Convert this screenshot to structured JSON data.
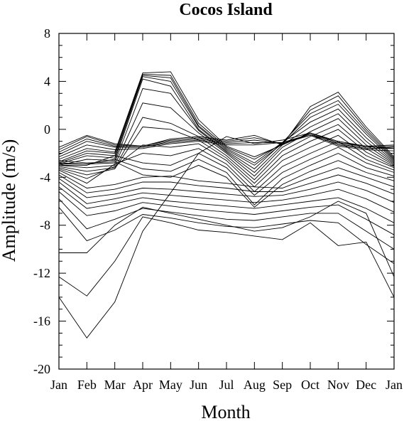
{
  "chart_data": {
    "type": "line",
    "title": "Cocos Island",
    "xlabel": "Month",
    "ylabel": "Amplitude (m/s)",
    "categories": [
      "Jan",
      "Feb",
      "Mar",
      "Apr",
      "May",
      "Jun",
      "Jul",
      "Aug",
      "Sep",
      "Oct",
      "Nov",
      "Dec",
      "Jan"
    ],
    "ylim": [
      -20,
      8
    ],
    "yticks": [
      "8",
      "4",
      "0",
      "-4",
      "-8",
      "-12",
      "-16",
      "-20"
    ],
    "grid": false,
    "colors": {
      "line": "#000000",
      "frame": "#000000",
      "background": "#ffffff"
    },
    "series": [
      {
        "values": [
          -1.5,
          -0.5,
          -1.2,
          -1.4,
          -0.8,
          -0.6,
          -0.9,
          -0.5,
          -1.3,
          -0.3,
          -1.0,
          -1.4,
          -1.3
        ]
      },
      {
        "values": [
          -1.7,
          -0.6,
          -1.3,
          -1.4,
          -0.9,
          -0.7,
          -1.0,
          -0.7,
          -1.2,
          -0.4,
          -1.1,
          -1.5,
          -1.4
        ]
      },
      {
        "values": [
          -1.9,
          -0.8,
          -1.4,
          -1.5,
          -1.0,
          -0.8,
          -1.1,
          -0.9,
          -1.2,
          -0.5,
          -1.2,
          -1.6,
          -1.5
        ]
      },
      {
        "values": [
          -2.1,
          -1.0,
          -1.5,
          -1.5,
          -1.1,
          -0.9,
          -1.2,
          -1.1,
          -1.1,
          -0.4,
          -1.3,
          -1.6,
          -1.6
        ]
      },
      {
        "values": [
          -2.3,
          -1.3,
          -1.7,
          -1.6,
          -1.2,
          -1.0,
          -1.3,
          -1.3,
          -1.1,
          -0.5,
          -1.4,
          -1.7,
          -1.8
        ]
      },
      {
        "values": [
          -2.5,
          -1.6,
          -1.9,
          4.7,
          4.8,
          0.8,
          -1.4,
          -2.3,
          -1.3,
          1.9,
          3.1,
          0.2,
          -2.3
        ]
      },
      {
        "values": [
          -2.7,
          -1.8,
          -2.0,
          4.6,
          4.5,
          0.5,
          -1.5,
          -2.5,
          -1.2,
          1.6,
          2.8,
          0.0,
          -2.4
        ]
      },
      {
        "values": [
          -2.8,
          -2.0,
          -2.2,
          4.5,
          4.3,
          0.3,
          -1.6,
          -2.8,
          -1.1,
          1.3,
          2.4,
          -0.2,
          -2.5
        ]
      },
      {
        "values": [
          -2.9,
          -2.2,
          -2.4,
          4.4,
          4.0,
          0.2,
          -1.7,
          -3.0,
          -1.2,
          1.0,
          2.1,
          -0.4,
          -2.6
        ]
      },
      {
        "values": [
          -3.0,
          -2.5,
          -2.6,
          4.2,
          3.6,
          0.0,
          -1.8,
          -3.3,
          -1.1,
          0.6,
          1.7,
          -0.7,
          -2.7
        ]
      },
      {
        "values": [
          -2.9,
          -2.9,
          -2.8,
          3.4,
          3.0,
          -0.1,
          -1.9,
          -3.6,
          -1.3,
          0.2,
          1.3,
          -1.0,
          -2.8
        ]
      },
      {
        "values": [
          -3.0,
          -3.2,
          -3.0,
          2.2,
          1.8,
          -0.3,
          -2.0,
          -3.9,
          -1.5,
          -0.2,
          0.9,
          -1.3,
          -2.9
        ]
      },
      {
        "values": [
          -3.1,
          -3.5,
          -3.2,
          1.0,
          0.5,
          -0.6,
          -2.2,
          -4.2,
          -1.8,
          -0.6,
          0.4,
          -1.6,
          -3.0
        ]
      },
      {
        "values": [
          -3.2,
          -3.8,
          -3.3,
          0.2,
          0.0,
          -0.9,
          -2.4,
          -4.5,
          -2.2,
          -1.0,
          0.0,
          -1.9,
          -3.1
        ]
      },
      {
        "values": [
          -3.3,
          -4.1,
          -3.1,
          -1.3,
          -1.5,
          -1.2,
          -2.6,
          -4.8,
          -2.6,
          -1.5,
          -0.5,
          -2.2,
          -3.2
        ]
      },
      {
        "values": [
          -3.4,
          -4.5,
          -2.9,
          -2.0,
          -2.2,
          -1.6,
          -2.9,
          -5.2,
          -3.1,
          -2.0,
          -1.0,
          -2.5,
          -3.4
        ]
      },
      {
        "values": [
          -3.0,
          -3.0,
          -2.2,
          -2.8,
          -3.0,
          -2.0,
          -3.2,
          -5.5,
          -3.6,
          -2.5,
          -1.5,
          -2.8,
          -3.6
        ]
      },
      {
        "values": [
          -2.8,
          -2.9,
          -2.5,
          -3.3,
          -3.5,
          -2.5,
          -3.6,
          -6.3,
          -4.1,
          -3.0,
          -2.0,
          -3.2,
          -3.9
        ]
      },
      {
        "values": [
          -2.6,
          -2.8,
          -2.7,
          -3.8,
          -4.0,
          -3.0,
          -4.0,
          -6.5,
          -4.6,
          -3.5,
          -2.6,
          -3.6,
          -4.3
        ]
      },
      {
        "values": [
          -3.6,
          -4.9,
          -4.6,
          -4.0,
          -3.9,
          -4.3,
          -4.5,
          -4.8,
          -4.9,
          -4.0,
          -3.2,
          -4.0,
          -4.8
        ]
      },
      {
        "values": [
          -3.8,
          -5.3,
          -5.0,
          -4.4,
          -4.4,
          -4.7,
          -4.9,
          -5.2,
          -5.2,
          -4.5,
          -3.8,
          -4.5,
          -5.4
        ]
      },
      {
        "values": [
          -4.1,
          -5.7,
          -5.4,
          -4.9,
          -5.0,
          -5.2,
          -5.4,
          -5.6,
          -5.5,
          -5.0,
          -4.4,
          -5.1,
          -6.1
        ]
      },
      {
        "values": [
          -4.4,
          -6.2,
          -5.8,
          -5.3,
          -5.5,
          -5.7,
          -5.9,
          -6.1,
          -5.9,
          -5.5,
          -5.0,
          -5.8,
          -6.9
        ]
      },
      {
        "values": [
          -4.8,
          -6.6,
          -6.2,
          -5.7,
          -6.0,
          -6.2,
          -6.4,
          -6.6,
          -6.3,
          -6.0,
          -5.7,
          -6.6,
          -7.8
        ]
      },
      {
        "values": [
          -5.2,
          -7.2,
          -6.8,
          -6.1,
          -6.4,
          -6.7,
          -6.9,
          -7.1,
          -6.8,
          -6.5,
          -6.3,
          -7.5,
          -8.8
        ]
      },
      {
        "values": [
          -5.8,
          -8.3,
          -7.5,
          -6.6,
          -6.9,
          -7.2,
          -7.5,
          -7.6,
          -7.3,
          -7.0,
          -7.0,
          -8.5,
          -10.0
        ]
      },
      {
        "values": [
          -6.5,
          -9.3,
          -8.4,
          -7.1,
          -7.4,
          -7.8,
          -8.1,
          -8.2,
          -7.9,
          -7.6,
          -7.8,
          -9.6,
          -11.2
        ]
      },
      {
        "values": [
          -10.3,
          -10.3,
          -8.0,
          -6.5,
          -7.0,
          -7.5,
          -8.0,
          -8.5,
          -8.2,
          -7.3,
          -6.0,
          -7.0,
          -12.3
        ]
      },
      {
        "values": [
          -12.3,
          -13.9,
          -11.0,
          -7.3,
          -7.8,
          -8.4,
          -8.6,
          -8.9,
          -9.2,
          -7.8,
          -9.7,
          -9.4,
          -14.0
        ]
      },
      {
        "values": [
          -14.0,
          -17.4,
          -14.4,
          -8.5,
          -5.3,
          -2.0,
          -0.6,
          -1.2,
          -0.9,
          -0.3,
          -1.1,
          -1.4,
          -1.6
        ]
      }
    ]
  }
}
